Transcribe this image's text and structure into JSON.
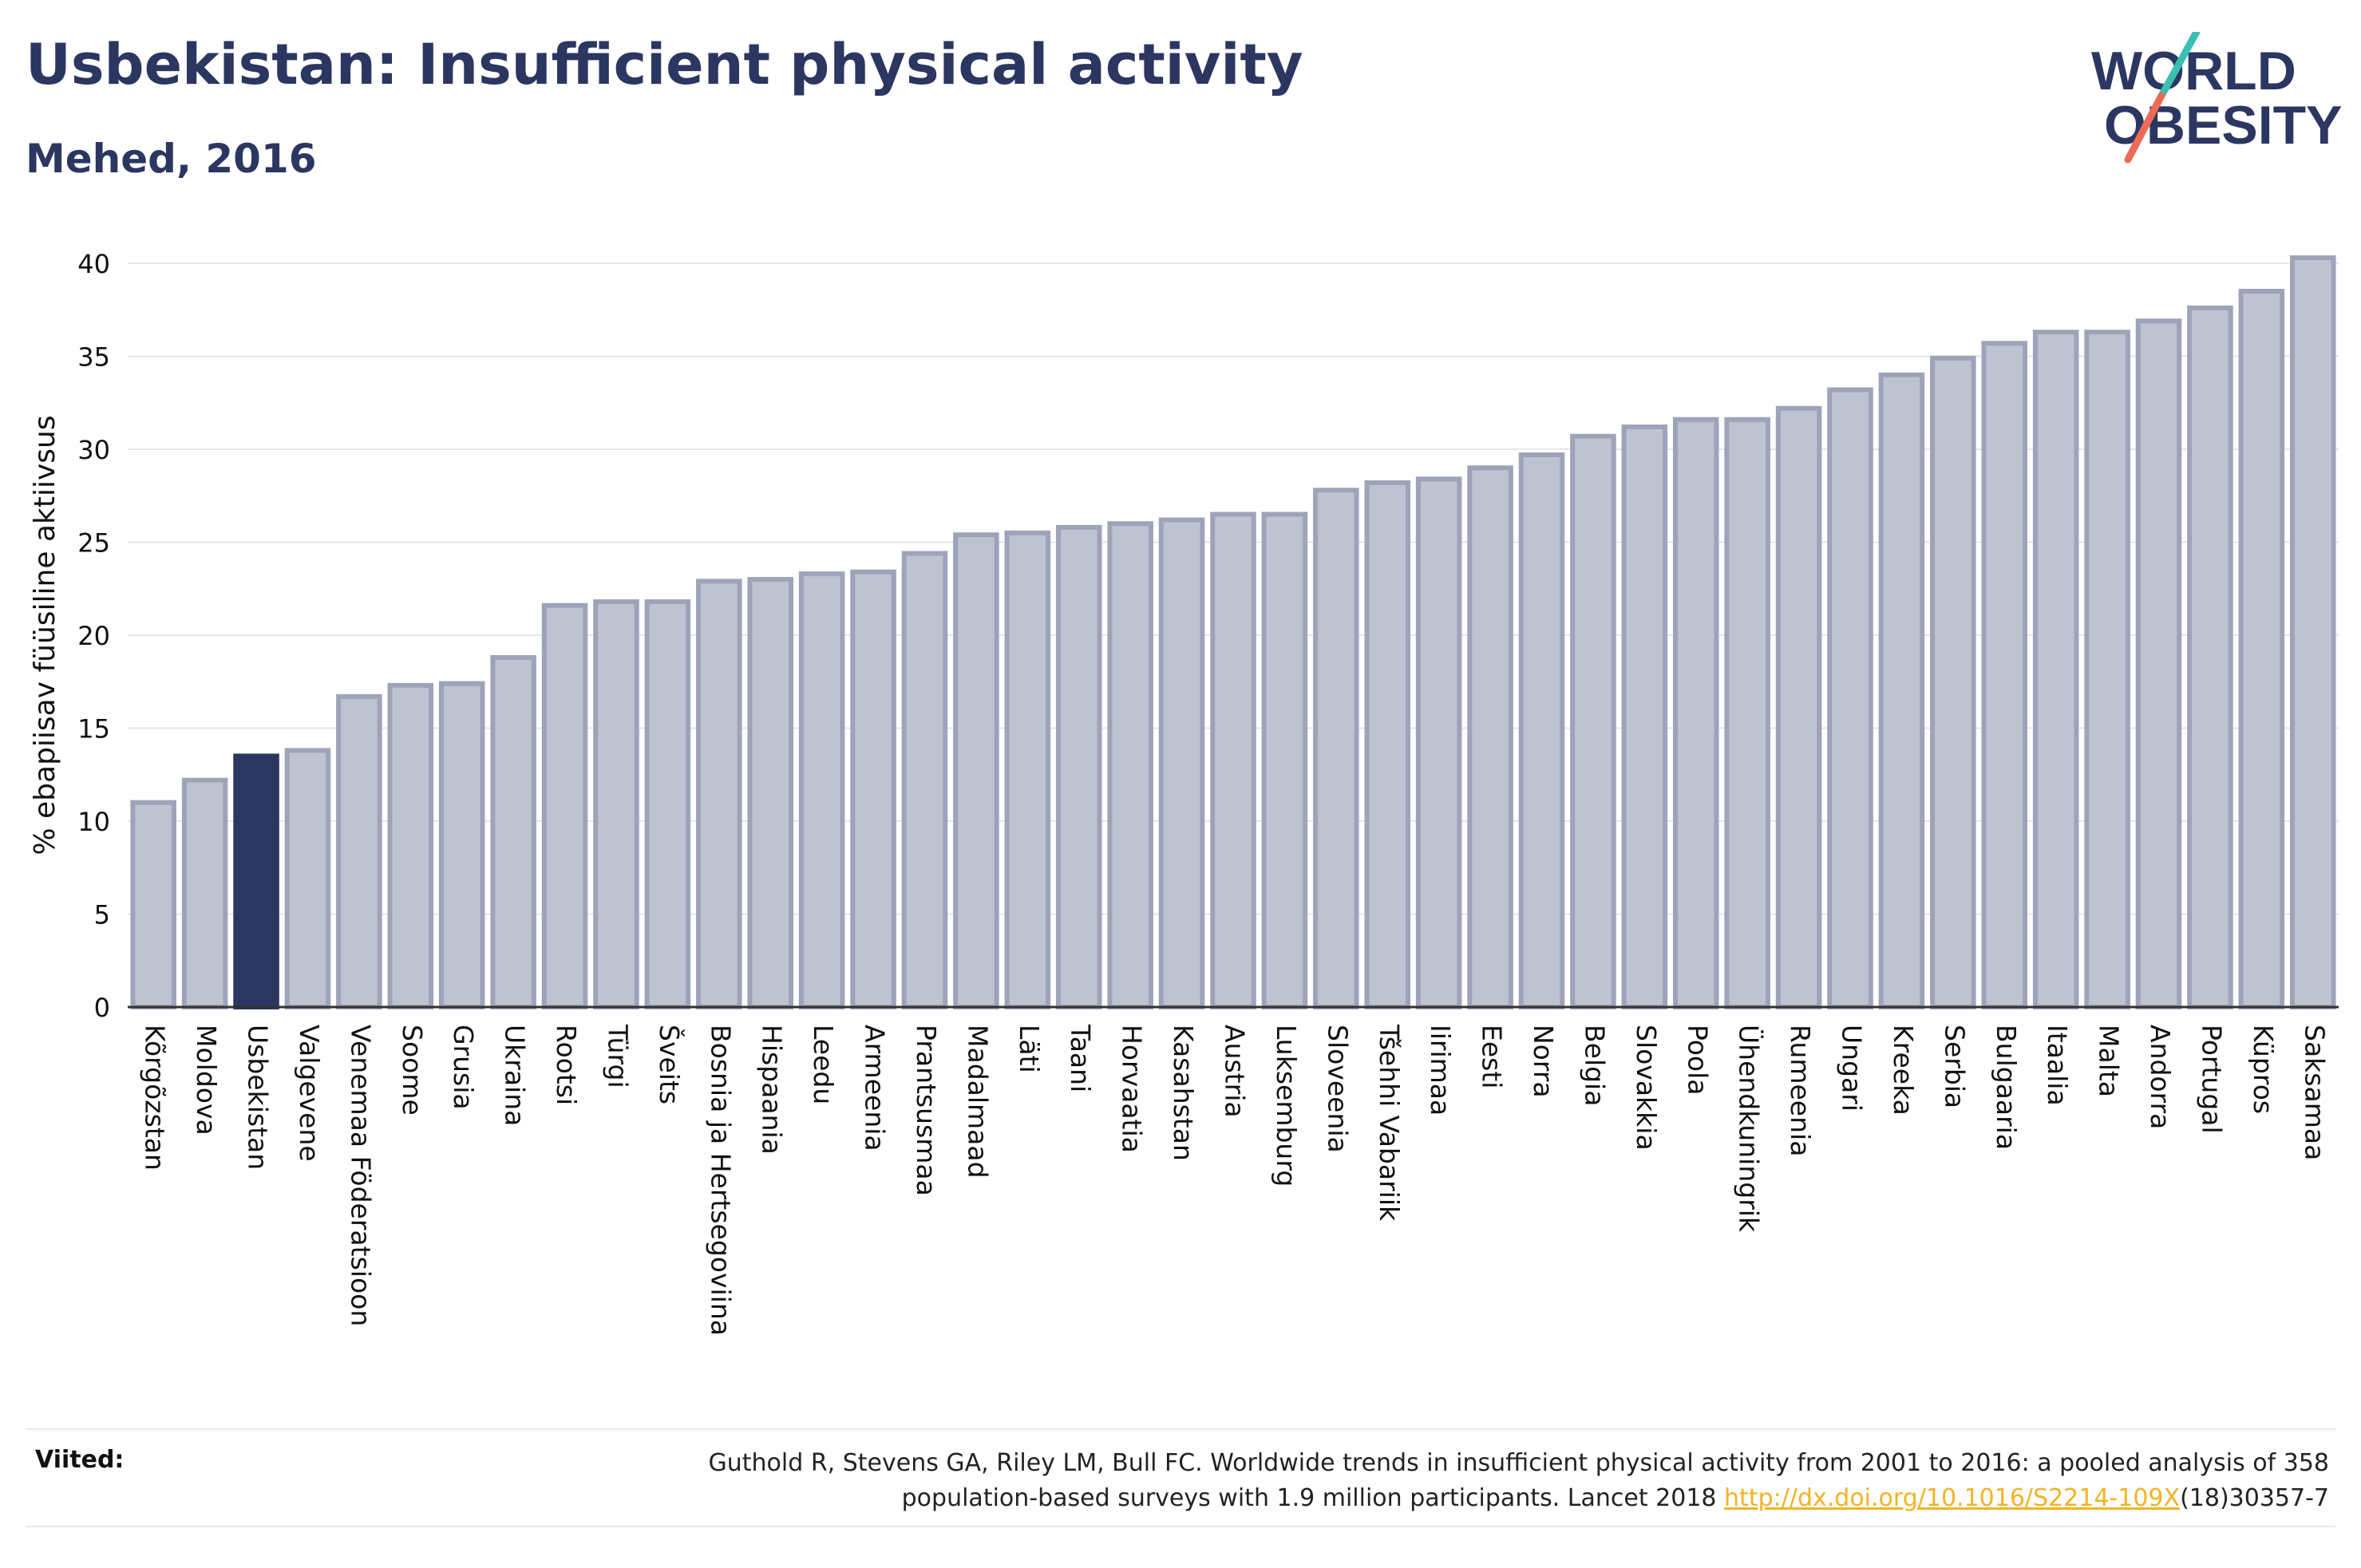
{
  "header": {
    "title": "Usbekistan: Insufficient physical activity",
    "subtitle": "Mehed, 2016"
  },
  "logo": {
    "line1": "WORLD",
    "line2": "OBESITY",
    "colors": {
      "text": "#2b3661",
      "slash_top": "#3bbfb2",
      "slash_bottom": "#ec6a56"
    }
  },
  "chart_data": {
    "type": "bar",
    "ylabel": "% ebapiisav füüsiline aktiivsus",
    "xlabel": "",
    "ylim": [
      0,
      40
    ],
    "yticks": [
      0,
      5,
      10,
      15,
      20,
      25,
      30,
      35,
      40
    ],
    "grid": true,
    "legend": "none",
    "highlight": "Usbekistan",
    "colors": {
      "bar": "#bfc3d1",
      "bar_edge": "#9ea3ba",
      "highlight": "#2b3661"
    },
    "categories": [
      "Kõrgõzstan",
      "Moldova",
      "Usbekistan",
      "Valgevene",
      "Venemaa Föderatsioon",
      "Soome",
      "Grusia",
      "Ukraina",
      "Rootsi",
      "Türgi",
      "Šveits",
      "Bosnia ja Hertsegoviina",
      "Hispaania",
      "Leedu",
      "Armeenia",
      "Prantsusmaa",
      "Madalmaad",
      "Läti",
      "Taani",
      "Horvaatia",
      "Kasahstan",
      "Austria",
      "Luksemburg",
      "Sloveenia",
      "Tšehhi Vabariik",
      "Iirimaa",
      "Eesti",
      "Norra",
      "Belgia",
      "Slovakkia",
      "Poola",
      "Ühendkuningrik",
      "Rumeenia",
      "Ungari",
      "Kreeka",
      "Serbia",
      "Bulgaaria",
      "Itaalia",
      "Malta",
      "Andorra",
      "Portugal",
      "Küpros",
      "Saksamaa"
    ],
    "values": [
      11.0,
      12.2,
      13.5,
      13.8,
      16.7,
      17.3,
      17.4,
      18.8,
      21.6,
      21.8,
      21.8,
      22.9,
      23.0,
      23.3,
      23.4,
      24.4,
      25.4,
      25.5,
      25.8,
      26.0,
      26.2,
      26.5,
      26.5,
      27.8,
      28.2,
      28.4,
      29.0,
      29.7,
      30.7,
      31.2,
      31.6,
      31.6,
      32.2,
      33.2,
      34.0,
      34.9,
      35.7,
      36.3,
      36.3,
      36.9,
      37.6,
      38.5,
      40.3
    ]
  },
  "references": {
    "label": "Viited:",
    "line1": "Guthold R, Stevens GA, Riley LM, Bull FC. Worldwide trends in insufficient physical activity from 2001 to 2016: a pooled analysis of 358",
    "line2_prefix": "population-based surveys with 1.9 million participants. Lancet 2018 ",
    "link": "http://dx.doi.org/10.1016/S2214-109X",
    "line2_suffix": "(18)30357-7"
  }
}
